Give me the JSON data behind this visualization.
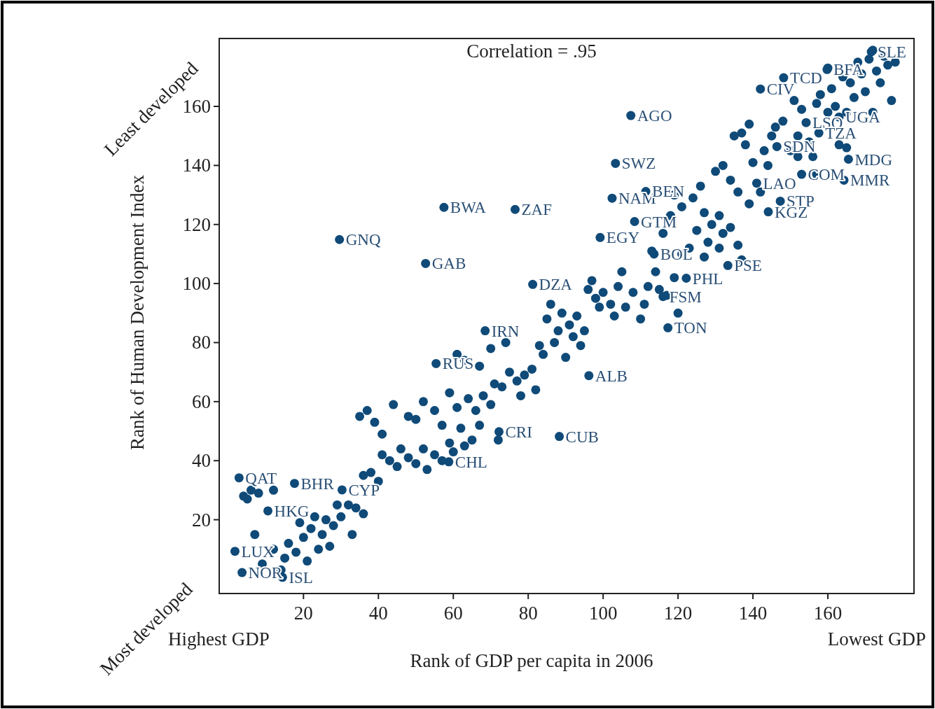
{
  "chart_data": {
    "type": "scatter",
    "xlabel": "Rank of GDP per capita in 2006",
    "ylabel": "Rank of Human Development Index",
    "annotations": [
      "Correlation = .95",
      "Highest GDP",
      "Lowest GDP",
      "Least developed",
      "Most developed"
    ],
    "xlim": [
      -2.5,
      183
    ],
    "ylim": [
      -5,
      183
    ],
    "xticks": [
      20,
      40,
      60,
      80,
      100,
      120,
      140,
      160
    ],
    "yticks": [
      20,
      40,
      60,
      80,
      100,
      120,
      140,
      160
    ],
    "grid": false,
    "marker": "circle",
    "series": [
      {
        "color": "#0f4a78",
        "x": [
          107.4,
          103.3,
          57.5,
          76.5,
          29.6,
          52.6,
          81.2,
          99.2,
          102.4,
          108.4,
          117.3,
          133.3,
          122.2,
          116,
          96.2,
          88.3,
          68.5,
          55.4,
          2.8,
          17.6,
          10.5,
          1.7,
          3.6,
          14.4,
          30.3,
          164.3,
          165.5,
          147.3,
          144.1,
          163,
          171.6,
          148.2,
          142,
          159.8,
          154.2,
          157.6,
          146.4,
          153,
          141,
          111.4,
          113.6,
          58.8,
          72.2
        ],
        "values": [
          156.9,
          140.7,
          125.8,
          125.1,
          114.9,
          106.8,
          99.7,
          115.6,
          128.9,
          121,
          85,
          106.1,
          101.8,
          95.6,
          68.8,
          48.2,
          84,
          72.9,
          34.2,
          32.3,
          23,
          9.3,
          2.1,
          0.5,
          30.1,
          135,
          142.1,
          127.9,
          124.3,
          156.4,
          178.5,
          169.7,
          165.9,
          172.5,
          154.5,
          151,
          146.4,
          137,
          134,
          131.2,
          110,
          39.6,
          49.8
        ],
        "value_labels": [
          "AGO",
          "SWZ",
          "BWA",
          "ZAF",
          "GNQ",
          "GAB",
          "DZA",
          "EGY",
          "NAM",
          "GTM",
          "TON",
          "PSE",
          "PHL",
          "FSM",
          "ALB",
          "CUB",
          "IRN",
          "RUS",
          "QAT",
          "BHR",
          "HKG",
          "LUX",
          "NOR",
          "ISL",
          "CYP",
          "MMR",
          "MDG",
          "STP",
          "KGZ",
          "UGA",
          "SLE",
          "TCD",
          "CIV",
          "BFA",
          "LSO",
          "TZA",
          "SDN",
          "COM",
          "LAO",
          "BEN",
          "BOL",
          "CHL",
          "CRI"
        ]
      },
      {
        "color": "#0f4a78",
        "x": [
          4,
          6,
          5,
          8,
          7,
          9,
          12,
          14,
          15,
          16,
          18,
          20,
          22,
          21,
          24,
          25,
          26,
          28,
          30,
          27,
          32,
          34,
          36,
          33,
          23,
          19,
          29,
          12,
          36,
          38,
          40,
          41,
          43,
          45,
          46,
          48,
          50,
          52,
          53,
          55,
          57,
          59,
          60,
          35,
          37,
          39,
          41,
          44,
          48,
          50,
          52,
          55,
          57,
          59,
          61,
          62,
          64,
          66,
          67,
          68,
          70,
          72,
          65,
          63,
          61,
          63,
          67,
          70,
          71,
          73,
          74,
          75,
          77,
          78,
          79,
          81,
          82,
          83,
          84,
          85,
          86,
          87,
          88,
          89,
          90,
          91,
          92,
          93,
          94,
          95,
          96,
          97,
          98,
          99,
          100,
          102,
          103,
          104,
          105,
          106,
          108,
          110,
          111,
          112,
          114,
          115,
          117,
          119,
          120,
          121,
          123,
          125,
          127,
          128,
          129,
          131,
          132,
          134,
          136,
          137,
          113,
          116,
          118,
          119,
          121,
          124,
          126,
          130,
          132,
          134,
          135,
          137,
          138,
          139,
          140,
          143,
          145,
          146,
          148,
          150,
          151,
          152,
          153,
          155,
          156,
          157,
          158,
          160,
          161,
          162,
          163,
          164,
          165,
          166,
          167,
          168,
          169,
          170,
          171,
          172,
          173,
          174,
          175,
          176,
          177,
          178,
          172,
          160,
          165,
          157,
          152,
          144,
          142,
          139,
          136,
          131,
          127
        ],
        "values": [
          28,
          30,
          27,
          29,
          15,
          5,
          10,
          3,
          7,
          12,
          9,
          14,
          17,
          6,
          10,
          15,
          20,
          18,
          21,
          11,
          25,
          24,
          22,
          15,
          21,
          19,
          25,
          30,
          35,
          36,
          33,
          42,
          40,
          38,
          44,
          41,
          39,
          44,
          37,
          42,
          40,
          46,
          43,
          55,
          57,
          53,
          49,
          59,
          55,
          54,
          60,
          57,
          52,
          63,
          58,
          51,
          61,
          57,
          52,
          62,
          59,
          47,
          47,
          45,
          76,
          74,
          72,
          78,
          66,
          65,
          80,
          70,
          67,
          62,
          69,
          71,
          64,
          79,
          76,
          88,
          93,
          80,
          84,
          90,
          75,
          86,
          82,
          89,
          79,
          84,
          98,
          101,
          95,
          92,
          97,
          93,
          89,
          99,
          104,
          92,
          97,
          88,
          93,
          99,
          104,
          98,
          96,
          102,
          90,
          110,
          112,
          118,
          109,
          114,
          120,
          112,
          117,
          119,
          113,
          108,
          111,
          117,
          123,
          130,
          126,
          129,
          133,
          138,
          140,
          135,
          150,
          151,
          147,
          154,
          141,
          145,
          150,
          153,
          155,
          145,
          162,
          150,
          159,
          148,
          143,
          161,
          164,
          173,
          166,
          160,
          147,
          170,
          158,
          168,
          163,
          175,
          171,
          165,
          176,
          179,
          172,
          168,
          177,
          174,
          162,
          175,
          158,
          158,
          146,
          137,
          143,
          140,
          131,
          127,
          131,
          123,
          124
        ]
      }
    ]
  }
}
